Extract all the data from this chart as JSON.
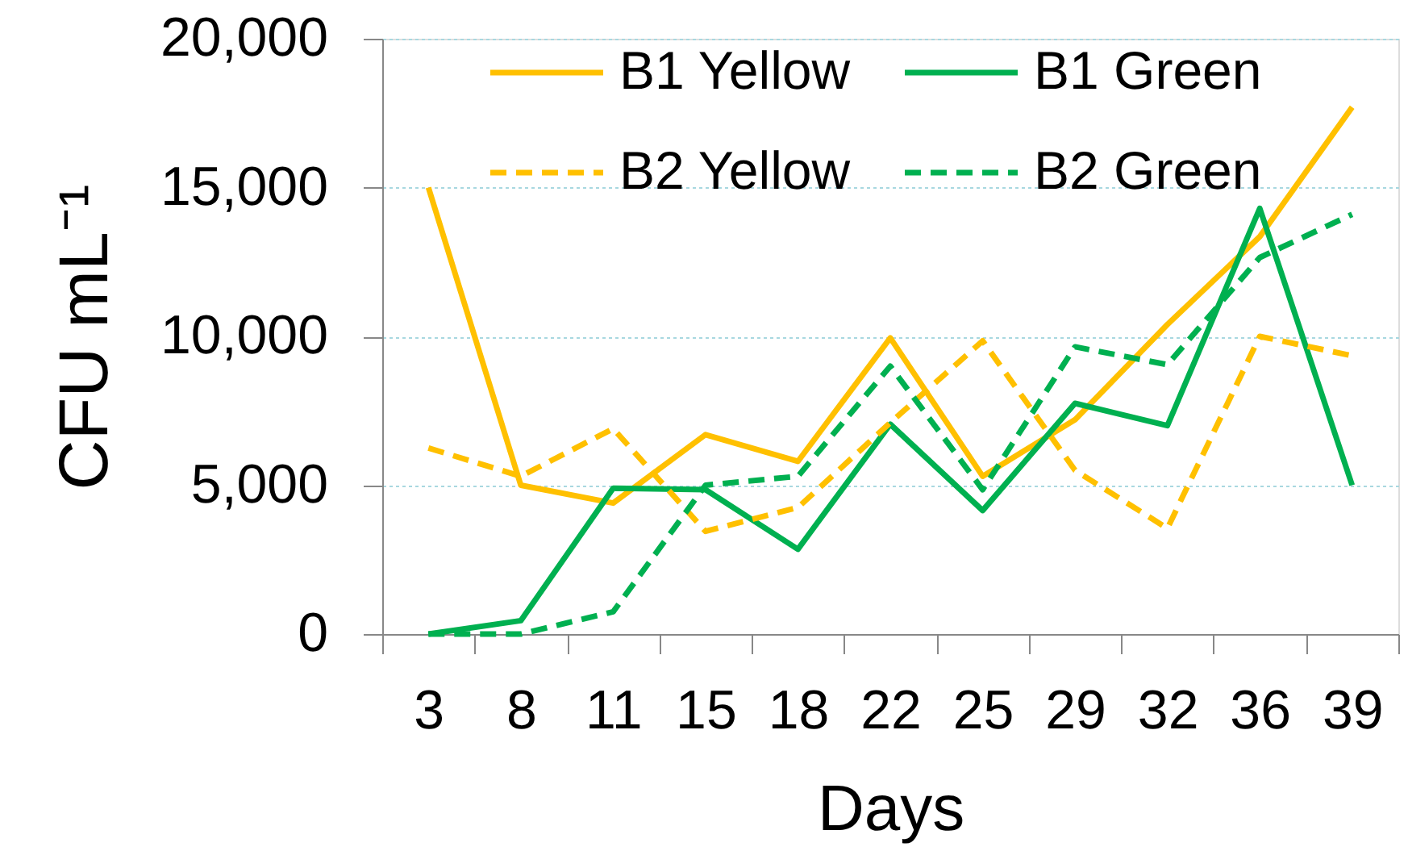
{
  "chart_data": {
    "type": "line",
    "xlabel": "Days",
    "ylabel": "CFU mL⁻¹",
    "categories": [
      "3",
      "8",
      "11",
      "15",
      "18",
      "22",
      "25",
      "29",
      "32",
      "36",
      "39"
    ],
    "series": [
      {
        "name": "B1 Yellow",
        "color": "#ffc000",
        "line_style": "solid",
        "values": [
          15000,
          5000,
          4400,
          6700,
          5800,
          9950,
          5300,
          7200,
          10400,
          13350,
          17700
        ]
      },
      {
        "name": "B1 Green",
        "color": "#00b050",
        "line_style": "solid",
        "values": [
          0,
          450,
          4900,
          4850,
          2850,
          7050,
          4150,
          7750,
          7000,
          14300,
          5000
        ]
      },
      {
        "name": "B2 Yellow",
        "color": "#ffc000",
        "line_style": "dashed",
        "values": [
          6250,
          5300,
          6900,
          3450,
          4250,
          7100,
          9850,
          5500,
          3550,
          10000,
          9350
        ]
      },
      {
        "name": "B2 Green",
        "color": "#00b050",
        "line_style": "dashed",
        "values": [
          0,
          0,
          750,
          5000,
          5300,
          9000,
          4850,
          9650,
          9050,
          12650,
          14100
        ]
      }
    ],
    "ylim": [
      0,
      20000
    ],
    "yticks": [
      0,
      {
        "value": 5000,
        "label": "5,000"
      },
      {
        "value": 10000,
        "label": "10,000"
      },
      {
        "value": 15000,
        "label": "15,000"
      },
      {
        "value": 20000,
        "label": "20,000"
      }
    ],
    "grid": "y",
    "legend": "top"
  }
}
